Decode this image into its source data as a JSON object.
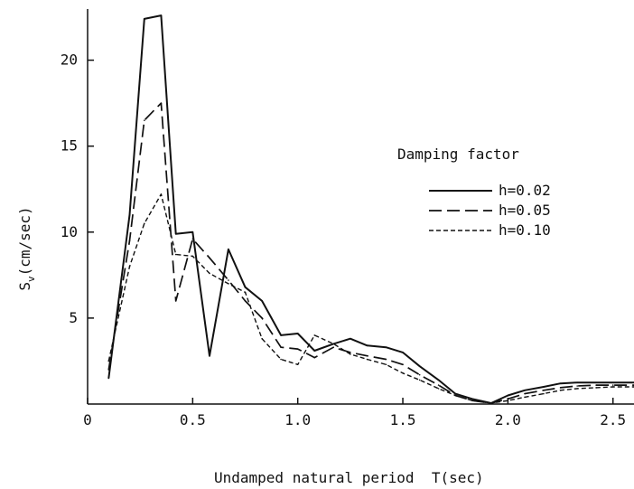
{
  "chart_data": {
    "type": "line",
    "xlabel": "Undamped natural period  T(sec)",
    "ylabel_main": "S",
    "ylabel_sub": "v",
    "ylabel_unit": "(cm/sec)",
    "xlim": [
      0,
      2.6
    ],
    "ylim": [
      0,
      23.5
    ],
    "x_ticks": [
      {
        "value": 0,
        "label": "0"
      },
      {
        "value": 0.5,
        "label": "0.5"
      },
      {
        "value": 1.0,
        "label": "1.0"
      },
      {
        "value": 1.5,
        "label": "1.5"
      },
      {
        "value": 2.0,
        "label": "2.0"
      },
      {
        "value": 2.5,
        "label": "2.5"
      }
    ],
    "y_ticks": [
      {
        "value": 5,
        "label": "5"
      },
      {
        "value": 10,
        "label": "10"
      },
      {
        "value": 15,
        "label": "15"
      },
      {
        "value": 20,
        "label": "20"
      }
    ],
    "grid": false,
    "legend": {
      "title": "Damping factor",
      "position": "right"
    },
    "series": [
      {
        "name": "h=0.02",
        "dash": "solid",
        "points": [
          [
            0.1,
            1.5
          ],
          [
            0.2,
            11
          ],
          [
            0.27,
            22.4
          ],
          [
            0.35,
            22.6
          ],
          [
            0.42,
            9.9
          ],
          [
            0.5,
            10.0
          ],
          [
            0.58,
            2.8
          ],
          [
            0.67,
            9.0
          ],
          [
            0.75,
            6.8
          ],
          [
            0.83,
            6.0
          ],
          [
            0.92,
            4.0
          ],
          [
            1.0,
            4.1
          ],
          [
            1.08,
            3.1
          ],
          [
            1.17,
            3.5
          ],
          [
            1.25,
            3.8
          ],
          [
            1.33,
            3.4
          ],
          [
            1.42,
            3.3
          ],
          [
            1.5,
            3.0
          ],
          [
            1.58,
            2.2
          ],
          [
            1.67,
            1.4
          ],
          [
            1.75,
            0.6
          ],
          [
            1.83,
            0.3
          ],
          [
            1.92,
            0.05
          ],
          [
            2.0,
            0.5
          ],
          [
            2.08,
            0.8
          ],
          [
            2.17,
            1.0
          ],
          [
            2.25,
            1.2
          ],
          [
            2.33,
            1.25
          ],
          [
            2.42,
            1.25
          ],
          [
            2.5,
            1.25
          ],
          [
            2.6,
            1.25
          ]
        ]
      },
      {
        "name": "h=0.05",
        "dash": "long",
        "points": [
          [
            0.1,
            2.0
          ],
          [
            0.2,
            9.5
          ],
          [
            0.27,
            16.5
          ],
          [
            0.35,
            17.5
          ],
          [
            0.42,
            6.0
          ],
          [
            0.5,
            9.6
          ],
          [
            0.58,
            8.5
          ],
          [
            0.67,
            7.2
          ],
          [
            0.75,
            6.0
          ],
          [
            0.83,
            5.0
          ],
          [
            0.92,
            3.3
          ],
          [
            1.0,
            3.2
          ],
          [
            1.08,
            2.7
          ],
          [
            1.17,
            3.3
          ],
          [
            1.25,
            3.0
          ],
          [
            1.33,
            2.8
          ],
          [
            1.42,
            2.6
          ],
          [
            1.5,
            2.3
          ],
          [
            1.58,
            1.7
          ],
          [
            1.67,
            1.1
          ],
          [
            1.75,
            0.5
          ],
          [
            1.83,
            0.2
          ],
          [
            1.92,
            0.05
          ],
          [
            2.0,
            0.3
          ],
          [
            2.08,
            0.6
          ],
          [
            2.17,
            0.8
          ],
          [
            2.25,
            0.95
          ],
          [
            2.33,
            1.05
          ],
          [
            2.42,
            1.1
          ],
          [
            2.5,
            1.1
          ],
          [
            2.6,
            1.1
          ]
        ]
      },
      {
        "name": "h=0.10",
        "dash": "short",
        "points": [
          [
            0.1,
            2.5
          ],
          [
            0.2,
            8.0
          ],
          [
            0.27,
            10.5
          ],
          [
            0.35,
            12.2
          ],
          [
            0.42,
            8.7
          ],
          [
            0.5,
            8.6
          ],
          [
            0.58,
            7.6
          ],
          [
            0.67,
            7.0
          ],
          [
            0.75,
            6.5
          ],
          [
            0.83,
            3.8
          ],
          [
            0.92,
            2.6
          ],
          [
            1.0,
            2.3
          ],
          [
            1.08,
            4.0
          ],
          [
            1.17,
            3.5
          ],
          [
            1.25,
            2.9
          ],
          [
            1.33,
            2.6
          ],
          [
            1.42,
            2.3
          ],
          [
            1.5,
            1.8
          ],
          [
            1.58,
            1.4
          ],
          [
            1.67,
            0.9
          ],
          [
            1.75,
            0.5
          ],
          [
            1.83,
            0.2
          ],
          [
            1.92,
            0.05
          ],
          [
            2.0,
            0.2
          ],
          [
            2.08,
            0.4
          ],
          [
            2.17,
            0.6
          ],
          [
            2.25,
            0.8
          ],
          [
            2.33,
            0.9
          ],
          [
            2.42,
            0.95
          ],
          [
            2.5,
            1.0
          ],
          [
            2.6,
            1.0
          ]
        ]
      }
    ]
  }
}
